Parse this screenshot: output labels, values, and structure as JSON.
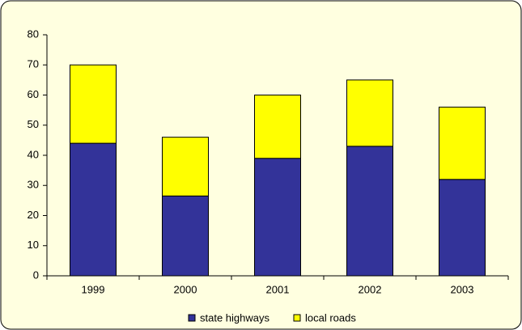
{
  "chart_data": {
    "type": "bar",
    "stacked": true,
    "categories": [
      "1999",
      "2000",
      "2001",
      "2002",
      "2003"
    ],
    "series": [
      {
        "name": "state highways",
        "color": "#333399",
        "values": [
          44,
          26.5,
          39,
          43,
          32
        ]
      },
      {
        "name": "local roads",
        "color": "#FFFF00",
        "values": [
          26,
          19.5,
          21,
          22,
          24
        ]
      }
    ],
    "ylim": [
      0,
      80
    ],
    "yticks": [
      0,
      10,
      20,
      30,
      40,
      50,
      60,
      70,
      80
    ],
    "grid": false,
    "legend": "bottom"
  }
}
